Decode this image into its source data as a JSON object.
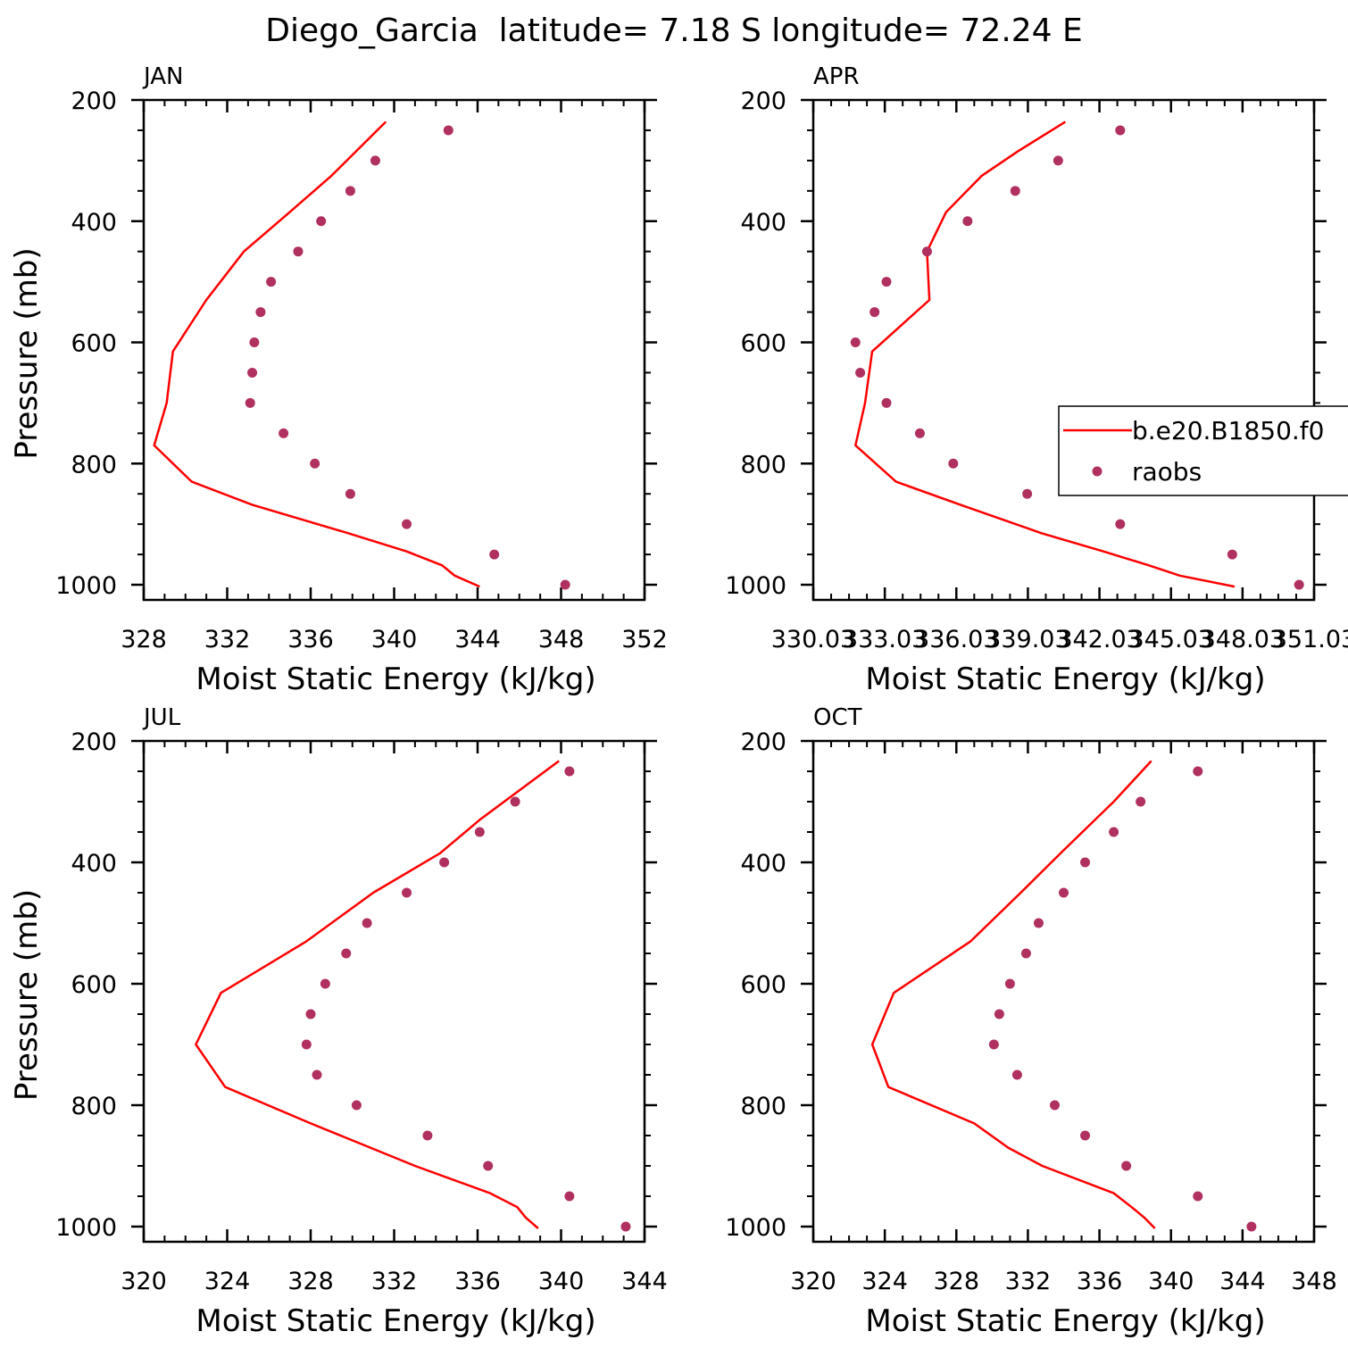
{
  "figure": {
    "title": "Diego_Garcia  latitude= 7.18 S longitude= 72.24 E"
  },
  "colors": {
    "model": "#ff0000",
    "obs": "#b03060",
    "axes": "#000000"
  },
  "legend": {
    "model_label": "b.e20.B1850.f0",
    "obs_label": "raobs",
    "panel": 1
  },
  "chart_data": [
    {
      "type": "line",
      "panel_label": "JAN",
      "xlabel": "Moist Static Energy (kJ/kg)",
      "ylabel": "Pressure (mb)",
      "xlim": [
        328,
        352
      ],
      "ylim": [
        1025,
        200
      ],
      "xtick_labels": [
        "328",
        "332",
        "336",
        "340",
        "344",
        "348",
        "352"
      ],
      "ytick_labels": [
        "200",
        "400",
        "600",
        "800",
        "1000"
      ],
      "ytick_values": [
        200,
        400,
        600,
        800,
        1000
      ],
      "series": [
        {
          "kind": "line",
          "pressure": [
            236,
            325,
            385,
            450,
            530,
            615,
            700,
            770,
            830,
            868,
            915,
            945,
            968,
            985,
            1003
          ],
          "mse": [
            339.6,
            337.0,
            335.0,
            332.8,
            331.0,
            329.4,
            329.1,
            328.5,
            330.3,
            333.2,
            337.8,
            340.6,
            342.3,
            342.9,
            344.1
          ]
        },
        {
          "kind": "scatter",
          "pressure": [
            250,
            300,
            350,
            400,
            450,
            500,
            550,
            600,
            650,
            700,
            750,
            800,
            850,
            900,
            950,
            1000
          ],
          "mse": [
            342.6,
            339.1,
            337.9,
            336.5,
            335.4,
            334.1,
            333.6,
            333.3,
            333.2,
            333.1,
            334.7,
            336.2,
            337.9,
            340.6,
            344.8,
            348.2
          ]
        }
      ]
    },
    {
      "type": "line",
      "panel_label": "APR",
      "xlabel": "Moist Static Energy (kJ/kg)",
      "ylabel": "",
      "xlim": [
        330.03,
        351.03
      ],
      "ylim": [
        1025,
        200
      ],
      "xtick_labels": [
        "330.03",
        "333.03",
        "336.03",
        "339.03",
        "342.03",
        "345.03",
        "348.03",
        "351.03"
      ],
      "ytick_labels": [
        "200",
        "400",
        "600",
        "800",
        "1000"
      ],
      "ytick_values": [
        200,
        400,
        600,
        800,
        1000
      ],
      "series": [
        {
          "kind": "line",
          "pressure": [
            236,
            285,
            325,
            385,
            450,
            530,
            615,
            700,
            770,
            830,
            868,
            915,
            945,
            968,
            985,
            1003
          ],
          "mse": [
            340.6,
            338.6,
            337.1,
            335.6,
            334.8,
            334.9,
            332.5,
            332.2,
            331.8,
            333.5,
            336.2,
            339.6,
            342.2,
            344.1,
            345.4,
            347.7
          ]
        },
        {
          "kind": "scatter",
          "pressure": [
            250,
            300,
            350,
            400,
            450,
            500,
            550,
            600,
            650,
            700,
            750,
            800,
            850,
            900,
            950,
            1000
          ],
          "mse": [
            342.9,
            340.3,
            338.5,
            336.5,
            334.8,
            333.1,
            332.6,
            331.8,
            332.0,
            333.1,
            334.5,
            335.9,
            339.0,
            342.9,
            347.6,
            350.4
          ]
        }
      ]
    },
    {
      "type": "line",
      "panel_label": "JUL",
      "xlabel": "Moist Static Energy (kJ/kg)",
      "ylabel": "Pressure (mb)",
      "xlim": [
        320,
        344
      ],
      "ylim": [
        1025,
        200
      ],
      "xtick_labels": [
        "320",
        "324",
        "328",
        "332",
        "336",
        "340",
        "344"
      ],
      "ytick_labels": [
        "200",
        "400",
        "600",
        "800",
        "1000"
      ],
      "ytick_values": [
        200,
        400,
        600,
        800,
        1000
      ],
      "series": [
        {
          "kind": "line",
          "pressure": [
            233,
            330,
            385,
            450,
            530,
            615,
            700,
            770,
            830,
            900,
            945,
            968,
            985,
            1003
          ],
          "mse": [
            339.9,
            336.1,
            334.2,
            331.0,
            327.8,
            323.7,
            322.5,
            323.9,
            328.0,
            333.0,
            336.6,
            337.9,
            338.3,
            338.9
          ]
        },
        {
          "kind": "scatter",
          "pressure": [
            250,
            300,
            350,
            400,
            450,
            500,
            550,
            600,
            650,
            700,
            750,
            800,
            850,
            900,
            950,
            1000
          ],
          "mse": [
            340.4,
            337.8,
            336.1,
            334.4,
            332.6,
            330.7,
            329.7,
            328.7,
            328.0,
            327.8,
            328.3,
            330.2,
            333.6,
            336.5,
            340.4,
            343.1
          ]
        }
      ]
    },
    {
      "type": "line",
      "panel_label": "OCT",
      "xlabel": "Moist Static Energy (kJ/kg)",
      "ylabel": "",
      "xlim": [
        320,
        348
      ],
      "ylim": [
        1025,
        200
      ],
      "xtick_labels": [
        "320",
        "324",
        "328",
        "332",
        "336",
        "340",
        "344",
        "348"
      ],
      "ytick_labels": [
        "200",
        "400",
        "600",
        "800",
        "1000"
      ],
      "ytick_values": [
        200,
        400,
        600,
        800,
        1000
      ],
      "series": [
        {
          "kind": "line",
          "pressure": [
            233,
            300,
            380,
            450,
            530,
            615,
            700,
            770,
            830,
            870,
            900,
            945,
            968,
            985,
            1003
          ],
          "mse": [
            338.9,
            336.8,
            334.0,
            331.6,
            328.8,
            324.5,
            323.3,
            324.2,
            329.0,
            330.9,
            332.8,
            336.8,
            337.8,
            338.5,
            339.1
          ]
        },
        {
          "kind": "scatter",
          "pressure": [
            250,
            300,
            350,
            400,
            450,
            500,
            550,
            600,
            650,
            700,
            750,
            800,
            850,
            900,
            950,
            1000
          ],
          "mse": [
            341.5,
            338.3,
            336.8,
            335.2,
            334.0,
            332.6,
            331.9,
            331.0,
            330.4,
            330.1,
            331.4,
            333.5,
            335.2,
            337.5,
            341.5,
            344.5
          ]
        }
      ]
    }
  ]
}
